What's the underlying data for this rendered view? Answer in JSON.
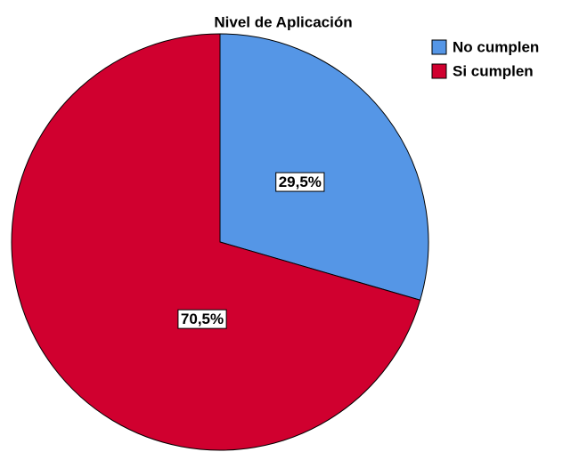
{
  "chart_data": {
    "type": "pie",
    "title": "Nivel de Aplicación",
    "categories": [
      "No cumplen",
      "Si cumplen"
    ],
    "values": [
      29.5,
      70.5
    ],
    "value_labels": [
      "29,5%",
      "70,5%"
    ],
    "colors": [
      "#5596e6",
      "#d0002f"
    ],
    "legend": "top-right"
  }
}
